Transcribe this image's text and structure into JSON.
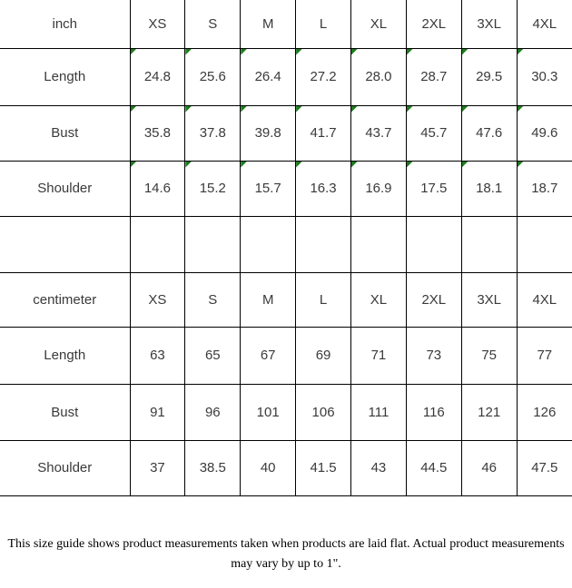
{
  "marker_color": "#1e7b1e",
  "sections": [
    {
      "unit": "inch",
      "sizes": [
        "XS",
        "S",
        "M",
        "L",
        "XL",
        "2XL",
        "3XL",
        "4XL"
      ],
      "rows": [
        {
          "label": "Length",
          "values": [
            "24.8",
            "25.6",
            "26.4",
            "27.2",
            "28.0",
            "28.7",
            "29.5",
            "30.3"
          ]
        },
        {
          "label": "Bust",
          "values": [
            "35.8",
            "37.8",
            "39.8",
            "41.7",
            "43.7",
            "45.7",
            "47.6",
            "49.6"
          ]
        },
        {
          "label": "Shoulder",
          "values": [
            "14.6",
            "15.2",
            "15.7",
            "16.3",
            "16.9",
            "17.5",
            "18.1",
            "18.7"
          ]
        }
      ]
    },
    {
      "unit": "centimeter",
      "sizes": [
        "XS",
        "S",
        "M",
        "L",
        "XL",
        "2XL",
        "3XL",
        "4XL"
      ],
      "rows": [
        {
          "label": "Length",
          "values": [
            "63",
            "65",
            "67",
            "69",
            "71",
            "73",
            "75",
            "77"
          ]
        },
        {
          "label": "Bust",
          "values": [
            "91",
            "96",
            "101",
            "106",
            "111",
            "116",
            "121",
            "126"
          ]
        },
        {
          "label": "Shoulder",
          "values": [
            "37",
            "38.5",
            "40",
            "41.5",
            "43",
            "44.5",
            "46",
            "47.5"
          ]
        }
      ]
    }
  ],
  "footer": {
    "text": "This size guide shows product measurements taken when products are laid flat. Actual product measurements may vary by up to 1\"."
  }
}
